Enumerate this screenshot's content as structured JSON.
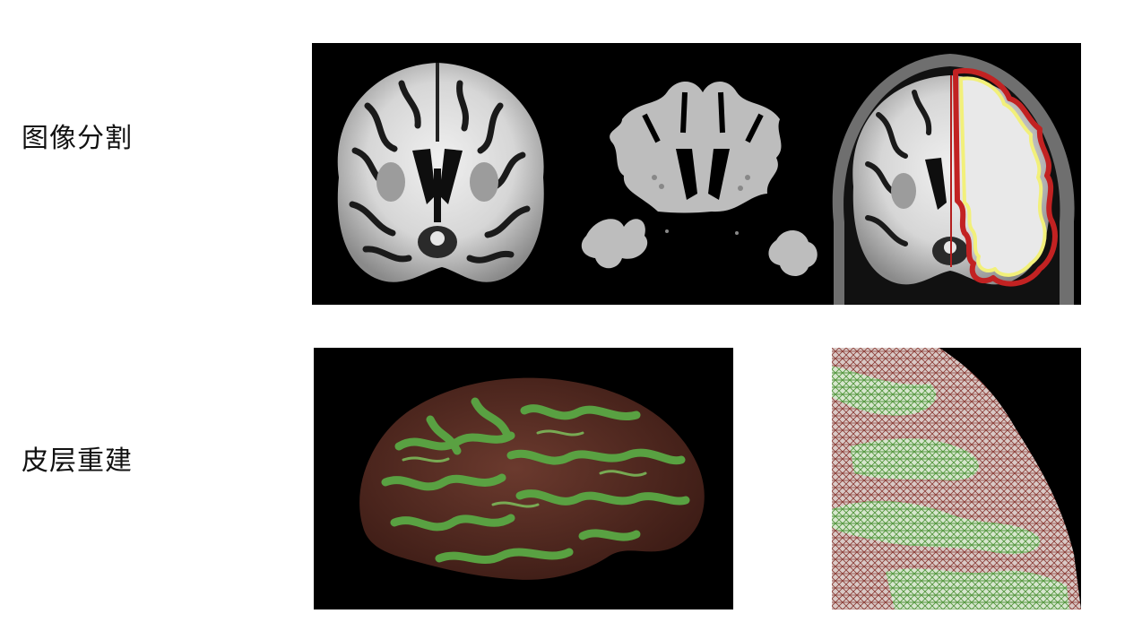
{
  "rows": [
    {
      "label": "图像分割"
    },
    {
      "label": "皮层重建"
    }
  ],
  "figures": {
    "segmentation": [
      {
        "icon": "mri-coronal-slice-icon"
      },
      {
        "icon": "white-matter-mask-icon"
      },
      {
        "icon": "mri-contour-overlay-icon"
      }
    ],
    "reconstruction": [
      {
        "icon": "cortical-surface-render-icon"
      },
      {
        "icon": "cortical-mesh-closeup-icon"
      }
    ]
  },
  "colors": {
    "background": "#000000",
    "mask_gray": "#bdbdbd",
    "contour_red": "#c22222",
    "contour_yellow": "#f2f07a",
    "gyri_green": "#4f9a3c",
    "sulci_red": "#8a2a22"
  }
}
